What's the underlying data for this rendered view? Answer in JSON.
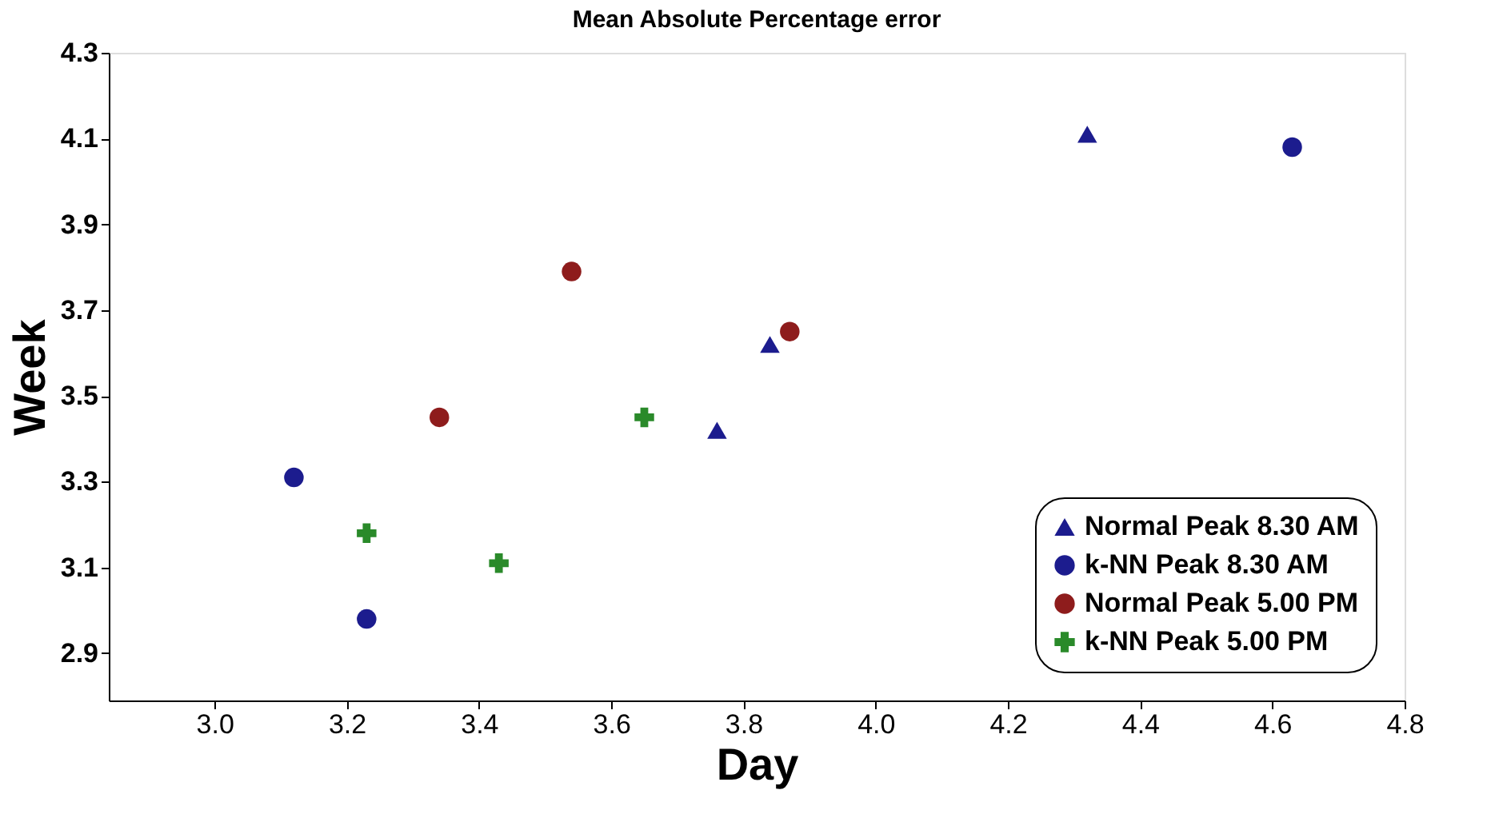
{
  "chart_data": {
    "type": "scatter",
    "title": "Mean Absolute Percentage error",
    "xlabel": "Day",
    "ylabel": "Week",
    "xlim": [
      2.84,
      4.8
    ],
    "ylim": [
      2.79,
      4.3
    ],
    "xticks": [
      {
        "value": 3,
        "label": "3.0"
      },
      3.2,
      3.4,
      3.6,
      3.8,
      {
        "value": 4,
        "label": "4.0"
      },
      4.2,
      4.4,
      4.6,
      4.8
    ],
    "yticks": [
      2.9,
      3.1,
      3.3,
      3.5,
      3.7,
      3.9,
      4.1,
      4.3
    ],
    "grid": false,
    "legend": "bottom right",
    "series": [
      {
        "name": "Normal Peak 8.30 AM",
        "color": "#1c1c8e",
        "marker": "triangle",
        "x": [
          4.32,
          3.84,
          3.76
        ],
        "values": [
          4.11,
          3.62,
          3.42
        ]
      },
      {
        "name": "k-NN Peak 8.30 AM",
        "color": "#1c1c8e",
        "marker": "circle",
        "x": [
          4.63,
          3.12,
          3.23
        ],
        "values": [
          4.08,
          3.31,
          2.98
        ]
      },
      {
        "name": "Normal Peak 5.00 PM",
        "color": "#8e1c1c",
        "marker": "circle",
        "x": [
          3.54,
          3.34,
          3.87
        ],
        "values": [
          3.79,
          3.45,
          3.65
        ]
      },
      {
        "name": "k-NN Peak 5.00 PM",
        "color": "#2a8a2a",
        "marker": "cross",
        "x": [
          3.23,
          3.43,
          3.65
        ],
        "values": [
          3.18,
          3.11,
          3.45
        ]
      }
    ]
  }
}
